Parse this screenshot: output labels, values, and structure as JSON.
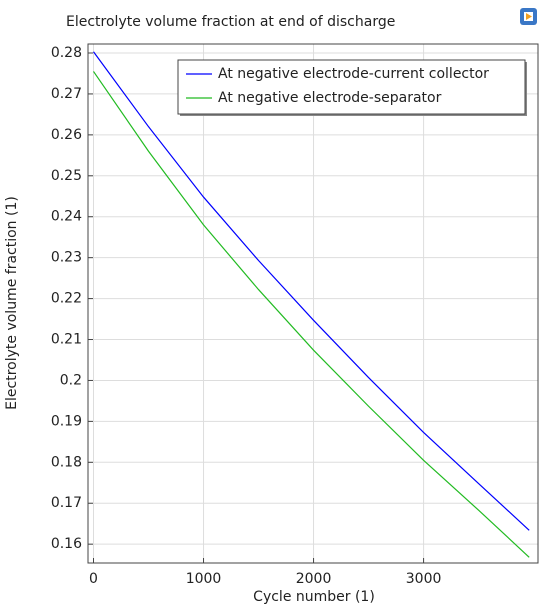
{
  "chart_data": {
    "type": "line",
    "title": "Electrolyte volume fraction at end of discharge",
    "x_label": "Cycle number (1)",
    "y_label": "Electrolyte volume fraction (1)",
    "x": [
      0,
      500,
      1000,
      1500,
      2000,
      2500,
      3000,
      3500,
      3960
    ],
    "series": [
      {
        "name": "At negative electrode-current collector",
        "color": "#0000ff",
        "values": [
          0.2803,
          0.262,
          0.2448,
          0.2293,
          0.2147,
          0.2007,
          0.1873,
          0.1748,
          0.1634
        ]
      },
      {
        "name": "At negative electrode-separator",
        "color": "#22bb22",
        "values": [
          0.2755,
          0.256,
          0.238,
          0.2222,
          0.2074,
          0.1937,
          0.1805,
          0.1683,
          0.1568
        ]
      }
    ],
    "xlim": [
      -50,
      4040
    ],
    "ylim": [
      0.1554,
      0.2822
    ],
    "xticks": [
      0,
      1000,
      2000,
      3000
    ],
    "yticks": [
      0.16,
      0.17,
      0.18,
      0.19,
      0.2,
      0.21,
      0.22,
      0.23,
      0.24,
      0.25,
      0.26,
      0.27,
      0.28
    ],
    "grid": true,
    "legend": "top-right"
  }
}
